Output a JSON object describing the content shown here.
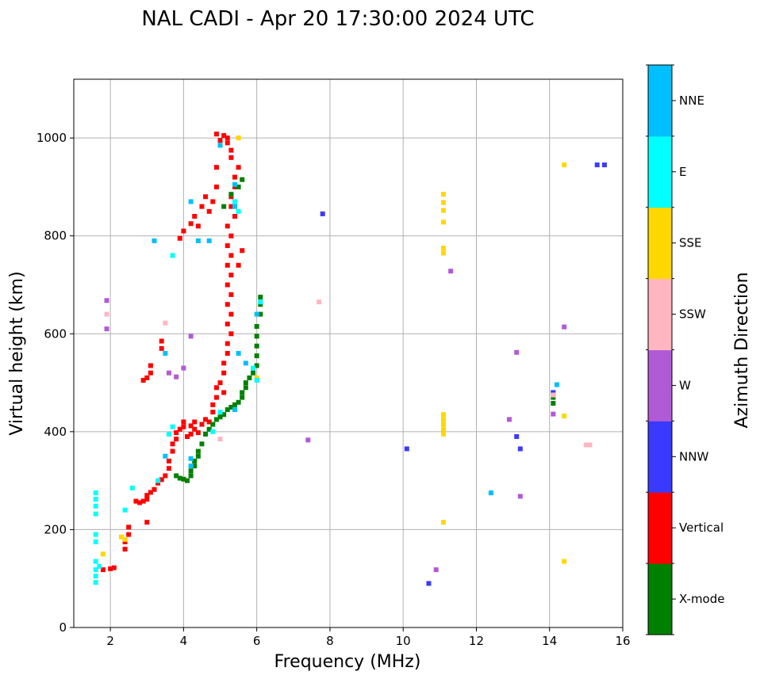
{
  "chart_data": {
    "type": "scatter",
    "title": "NAL CADI - Apr 20 17:30:00 2024 UTC",
    "xlabel": "Frequency (MHz)",
    "ylabel": "Virtual height (km)",
    "xlim": [
      1,
      16
    ],
    "ylim": [
      0,
      1120
    ],
    "xticks": [
      2,
      4,
      6,
      8,
      10,
      12,
      14,
      16
    ],
    "yticks": [
      0,
      200,
      400,
      600,
      800,
      1000
    ],
    "grid": true,
    "colorbar": {
      "label": "Azimuth Direction",
      "categories": [
        {
          "name": "X-mode",
          "color": "#008000"
        },
        {
          "name": "Vertical",
          "color": "#ff0000"
        },
        {
          "name": "NNW",
          "color": "#3a3aff"
        },
        {
          "name": "W",
          "color": "#b15ad6"
        },
        {
          "name": "SSW",
          "color": "#ffb6c1"
        },
        {
          "name": "SSE",
          "color": "#ffd700"
        },
        {
          "name": "E",
          "color": "#00ffff"
        },
        {
          "name": "NNE",
          "color": "#00bfff"
        }
      ]
    },
    "series": [
      {
        "name": "Vertical",
        "points": [
          [
            1.8,
            118
          ],
          [
            2.0,
            120
          ],
          [
            2.1,
            122
          ],
          [
            2.4,
            160
          ],
          [
            2.4,
            175
          ],
          [
            2.5,
            190
          ],
          [
            2.5,
            205
          ],
          [
            2.7,
            258
          ],
          [
            2.8,
            255
          ],
          [
            2.9,
            258
          ],
          [
            3.0,
            262
          ],
          [
            3.0,
            270
          ],
          [
            3.1,
            276
          ],
          [
            3.2,
            282
          ],
          [
            3.3,
            295
          ],
          [
            3.4,
            302
          ],
          [
            3.5,
            310
          ],
          [
            3.6,
            325
          ],
          [
            3.6,
            340
          ],
          [
            3.7,
            360
          ],
          [
            3.7,
            375
          ],
          [
            3.8,
            385
          ],
          [
            3.8,
            398
          ],
          [
            3.9,
            405
          ],
          [
            4.0,
            410
          ],
          [
            4.0,
            420
          ],
          [
            4.1,
            390
          ],
          [
            4.2,
            395
          ],
          [
            4.2,
            412
          ],
          [
            4.3,
            405
          ],
          [
            4.3,
            420
          ],
          [
            4.4,
            398
          ],
          [
            4.5,
            415
          ],
          [
            4.6,
            425
          ],
          [
            4.7,
            420
          ],
          [
            4.8,
            440
          ],
          [
            4.8,
            455
          ],
          [
            4.9,
            470
          ],
          [
            4.9,
            490
          ],
          [
            5.0,
            500
          ],
          [
            5.1,
            480
          ],
          [
            5.1,
            520
          ],
          [
            5.1,
            540
          ],
          [
            5.2,
            560
          ],
          [
            5.2,
            580
          ],
          [
            5.3,
            600
          ],
          [
            5.2,
            620
          ],
          [
            5.3,
            640
          ],
          [
            5.2,
            660
          ],
          [
            5.3,
            680
          ],
          [
            5.2,
            700
          ],
          [
            5.3,
            720
          ],
          [
            5.2,
            740
          ],
          [
            5.3,
            760
          ],
          [
            5.2,
            780
          ],
          [
            5.3,
            800
          ],
          [
            5.2,
            820
          ],
          [
            5.4,
            840
          ],
          [
            5.3,
            860
          ],
          [
            5.3,
            880
          ],
          [
            5.4,
            900
          ],
          [
            5.4,
            920
          ],
          [
            5.5,
            940
          ],
          [
            5.3,
            960
          ],
          [
            5.3,
            975
          ],
          [
            5.2,
            990
          ],
          [
            5.1,
            1005
          ],
          [
            4.9,
            1008
          ],
          [
            5.0,
            995
          ],
          [
            5.2,
            1000
          ],
          [
            4.9,
            940
          ],
          [
            4.9,
            900
          ],
          [
            4.8,
            870
          ],
          [
            4.7,
            850
          ],
          [
            4.6,
            880
          ],
          [
            4.5,
            860
          ],
          [
            4.4,
            820
          ],
          [
            4.3,
            840
          ],
          [
            4.2,
            825
          ],
          [
            4.0,
            810
          ],
          [
            3.9,
            795
          ],
          [
            3.4,
            570
          ],
          [
            3.4,
            585
          ],
          [
            3.1,
            520
          ],
          [
            3.1,
            535
          ],
          [
            3.0,
            510
          ],
          [
            2.9,
            505
          ],
          [
            3.0,
            215
          ],
          [
            5.6,
            770
          ],
          [
            5.5,
            740
          ]
        ]
      },
      {
        "name": "X-mode",
        "points": [
          [
            3.8,
            310
          ],
          [
            3.9,
            305
          ],
          [
            4.0,
            303
          ],
          [
            4.1,
            300
          ],
          [
            4.2,
            310
          ],
          [
            4.2,
            320
          ],
          [
            4.3,
            330
          ],
          [
            4.3,
            340
          ],
          [
            4.4,
            350
          ],
          [
            4.4,
            360
          ],
          [
            4.5,
            375
          ],
          [
            4.6,
            395
          ],
          [
            4.7,
            405
          ],
          [
            4.8,
            415
          ],
          [
            4.9,
            425
          ],
          [
            5.0,
            430
          ],
          [
            5.1,
            435
          ],
          [
            5.2,
            445
          ],
          [
            5.3,
            450
          ],
          [
            5.4,
            455
          ],
          [
            5.5,
            460
          ],
          [
            5.6,
            470
          ],
          [
            5.6,
            480
          ],
          [
            5.7,
            490
          ],
          [
            5.7,
            500
          ],
          [
            5.8,
            510
          ],
          [
            5.9,
            520
          ],
          [
            6.0,
            535
          ],
          [
            6.0,
            555
          ],
          [
            6.0,
            575
          ],
          [
            6.0,
            595
          ],
          [
            6.0,
            615
          ],
          [
            6.1,
            640
          ],
          [
            6.1,
            660
          ],
          [
            6.1,
            675
          ],
          [
            5.1,
            860
          ],
          [
            5.3,
            885
          ],
          [
            5.5,
            900
          ],
          [
            5.6,
            915
          ],
          [
            14.1,
            470
          ],
          [
            14.1,
            458
          ],
          [
            14.1,
            480
          ]
        ]
      },
      {
        "name": "NNW",
        "points": [
          [
            7.8,
            845
          ],
          [
            10.1,
            365
          ],
          [
            10.7,
            90
          ],
          [
            13.1,
            390
          ],
          [
            13.2,
            365
          ],
          [
            14.1,
            480
          ],
          [
            15.3,
            945
          ],
          [
            15.5,
            945
          ]
        ]
      },
      {
        "name": "W",
        "points": [
          [
            1.9,
            668
          ],
          [
            1.9,
            610
          ],
          [
            3.8,
            512
          ],
          [
            4.0,
            530
          ],
          [
            4.2,
            595
          ],
          [
            7.4,
            383
          ],
          [
            11.3,
            728
          ],
          [
            10.9,
            118
          ],
          [
            12.9,
            425
          ],
          [
            13.1,
            562
          ],
          [
            13.2,
            268
          ],
          [
            14.1,
            436
          ],
          [
            14.4,
            614
          ],
          [
            3.6,
            520
          ]
        ]
      },
      {
        "name": "SSW",
        "points": [
          [
            1.9,
            640
          ],
          [
            3.5,
            622
          ],
          [
            7.7,
            665
          ],
          [
            5.0,
            385
          ],
          [
            14.1,
            475
          ],
          [
            15.0,
            373
          ],
          [
            15.1,
            373
          ]
        ]
      },
      {
        "name": "SSE",
        "points": [
          [
            1.8,
            150
          ],
          [
            2.3,
            185
          ],
          [
            2.4,
            180
          ],
          [
            11.1,
            885
          ],
          [
            11.1,
            868
          ],
          [
            11.1,
            852
          ],
          [
            11.1,
            828
          ],
          [
            11.1,
            775
          ],
          [
            11.1,
            765
          ],
          [
            11.1,
            435
          ],
          [
            11.1,
            425
          ],
          [
            11.1,
            415
          ],
          [
            11.1,
            405
          ],
          [
            11.1,
            395
          ],
          [
            11.1,
            215
          ],
          [
            14.4,
            945
          ],
          [
            14.4,
            432
          ],
          [
            14.4,
            135
          ],
          [
            5.5,
            1000
          ],
          [
            6.0,
            510
          ]
        ]
      },
      {
        "name": "E",
        "points": [
          [
            1.6,
            275
          ],
          [
            1.6,
            262
          ],
          [
            1.6,
            248
          ],
          [
            1.6,
            232
          ],
          [
            1.6,
            190
          ],
          [
            1.6,
            175
          ],
          [
            1.6,
            135
          ],
          [
            1.6,
            118
          ],
          [
            1.6,
            105
          ],
          [
            1.6,
            92
          ],
          [
            1.7,
            125
          ],
          [
            2.4,
            240
          ],
          [
            2.6,
            285
          ],
          [
            3.3,
            300
          ],
          [
            3.6,
            395
          ],
          [
            3.7,
            410
          ],
          [
            3.7,
            760
          ],
          [
            4.8,
            400
          ],
          [
            5.0,
            440
          ],
          [
            5.9,
            530
          ],
          [
            6.1,
            665
          ],
          [
            6.0,
            505
          ],
          [
            5.5,
            850
          ],
          [
            5.4,
            870
          ]
        ]
      },
      {
        "name": "NNE",
        "points": [
          [
            3.2,
            790
          ],
          [
            3.5,
            350
          ],
          [
            4.2,
            330
          ],
          [
            4.2,
            345
          ],
          [
            4.2,
            870
          ],
          [
            4.4,
            790
          ],
          [
            4.7,
            790
          ],
          [
            5.0,
            985
          ],
          [
            5.4,
            860
          ],
          [
            5.4,
            905
          ],
          [
            5.5,
            560
          ],
          [
            5.7,
            540
          ],
          [
            6.0,
            640
          ],
          [
            5.4,
            445
          ],
          [
            12.4,
            275
          ],
          [
            14.2,
            496
          ],
          [
            3.5,
            560
          ]
        ]
      }
    ]
  }
}
